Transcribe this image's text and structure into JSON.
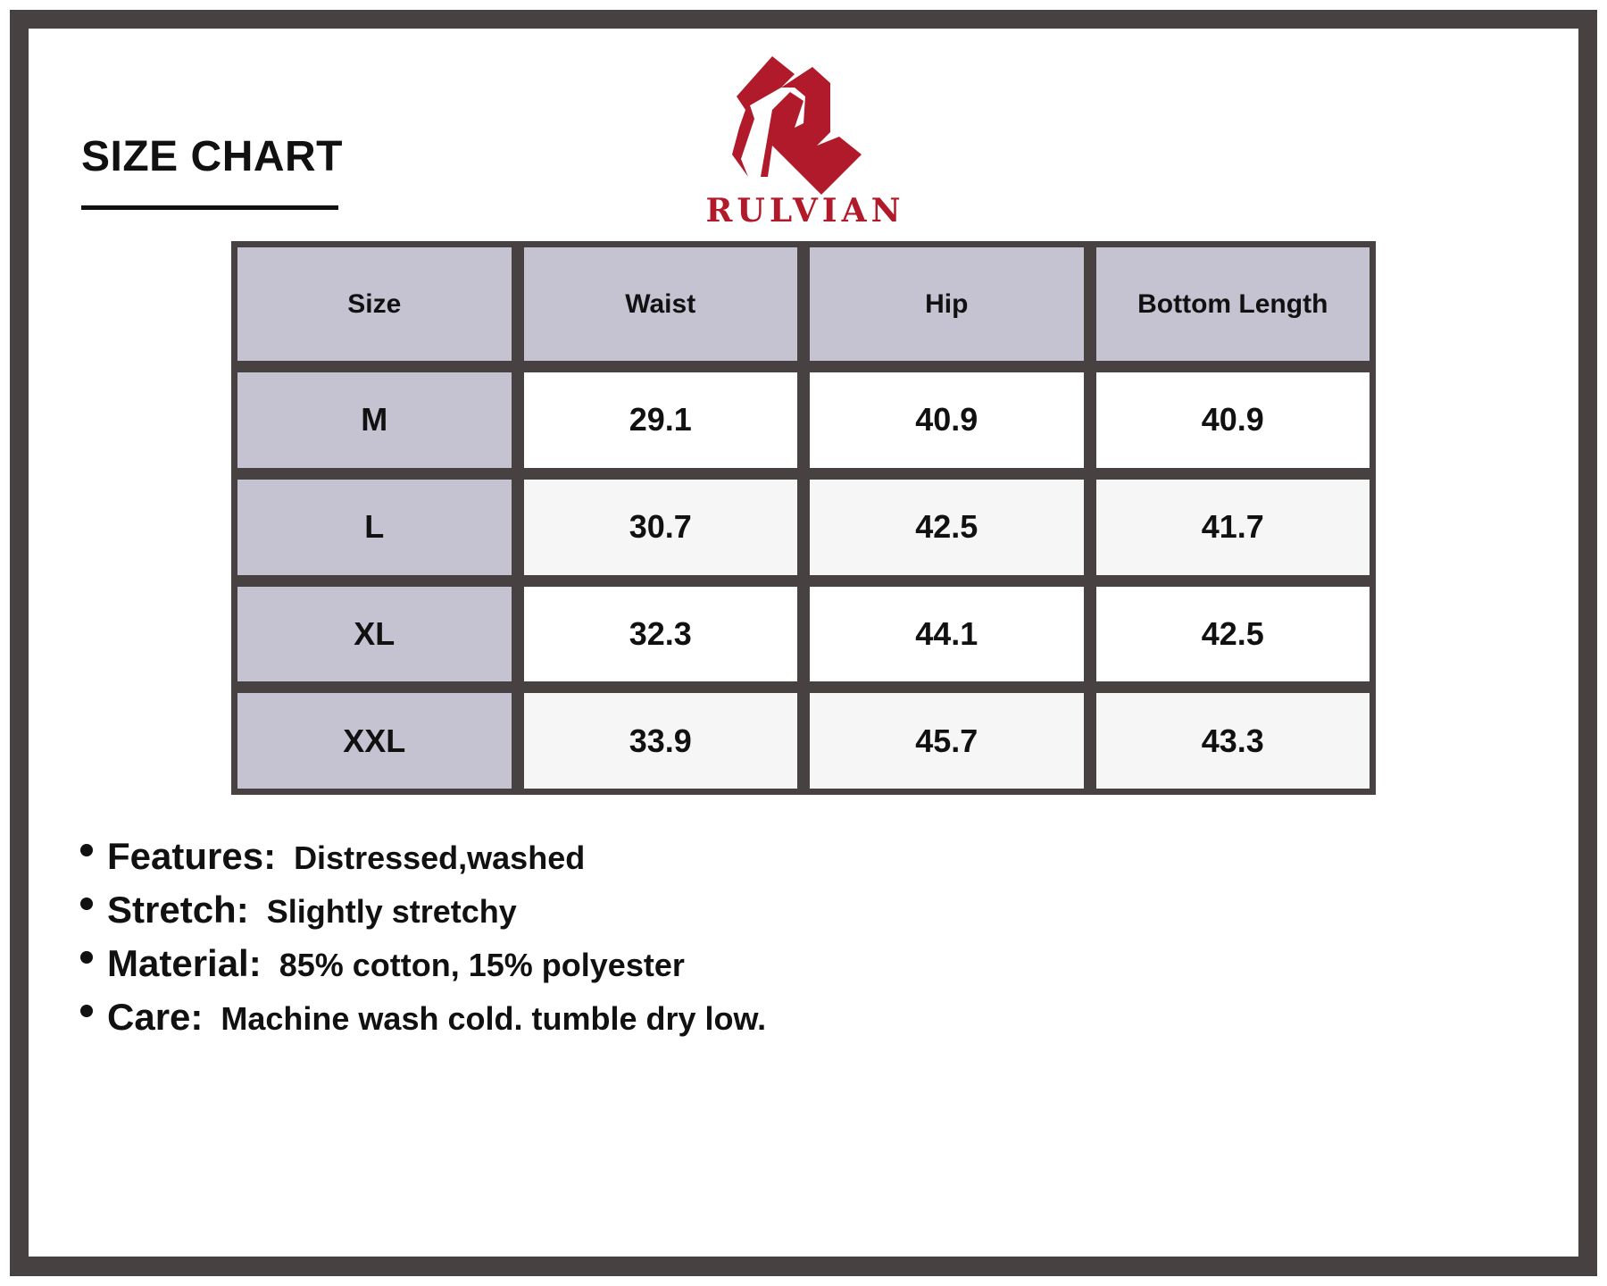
{
  "title": "SIZE CHART",
  "brand": {
    "name": "RULVIAN",
    "color": "#b01a2a"
  },
  "table": {
    "headers": [
      "Size",
      "Waist",
      "Hip",
      "Bottom Length"
    ],
    "rows": [
      [
        "M",
        "29.1",
        "40.9",
        "40.9"
      ],
      [
        "L",
        "30.7",
        "42.5",
        "41.7"
      ],
      [
        "XL",
        "32.3",
        "44.1",
        "42.5"
      ],
      [
        "XXL",
        "33.9",
        "45.7",
        "43.3"
      ]
    ]
  },
  "notes": [
    {
      "label": "Features:",
      "value": "Distressed,washed"
    },
    {
      "label": "Stretch:",
      "value": "Slightly stretchy"
    },
    {
      "label": "Material:",
      "value": "85% cotton, 15% polyester"
    },
    {
      "label": "Care:",
      "value": "Machine wash cold. tumble dry low."
    }
  ]
}
